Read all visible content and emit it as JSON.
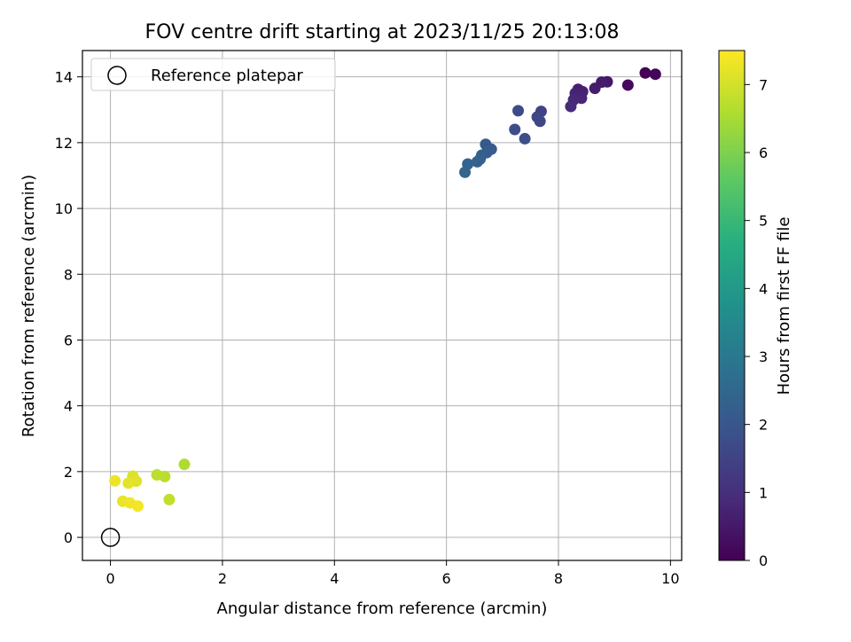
{
  "chart_data": {
    "type": "scatter",
    "title": "FOV centre drift starting at 2023/11/25 20:13:08",
    "xlabel": "Angular distance from reference (arcmin)",
    "ylabel": "Rotation from reference (arcmin)",
    "xlim": [
      -0.5,
      10.2
    ],
    "ylim": [
      -0.7,
      14.8
    ],
    "xticks": [
      0,
      2,
      4,
      6,
      8,
      10
    ],
    "yticks": [
      0,
      2,
      4,
      6,
      8,
      10,
      12,
      14
    ],
    "grid": true,
    "legend": {
      "position": "top-left",
      "label": "Reference platepar"
    },
    "reference_point": {
      "x": 0,
      "y": 0
    },
    "colorbar": {
      "label": "Hours from first FF file",
      "range": [
        0,
        7.5
      ],
      "ticks": [
        0,
        1,
        2,
        3,
        4,
        5,
        6,
        7
      ],
      "colormap": "viridis"
    },
    "points": [
      {
        "x": 9.55,
        "y": 14.12,
        "h": 0.05
      },
      {
        "x": 9.73,
        "y": 14.08,
        "h": 0.1
      },
      {
        "x": 9.24,
        "y": 13.75,
        "h": 0.2
      },
      {
        "x": 8.87,
        "y": 13.85,
        "h": 0.5
      },
      {
        "x": 8.77,
        "y": 13.84,
        "h": 0.55
      },
      {
        "x": 8.65,
        "y": 13.65,
        "h": 0.6
      },
      {
        "x": 8.35,
        "y": 13.62,
        "h": 0.65
      },
      {
        "x": 8.43,
        "y": 13.55,
        "h": 0.7
      },
      {
        "x": 8.3,
        "y": 13.5,
        "h": 0.75
      },
      {
        "x": 8.41,
        "y": 13.35,
        "h": 0.8
      },
      {
        "x": 8.27,
        "y": 13.3,
        "h": 0.85
      },
      {
        "x": 8.22,
        "y": 13.1,
        "h": 0.9
      },
      {
        "x": 7.69,
        "y": 12.95,
        "h": 1.5
      },
      {
        "x": 7.62,
        "y": 12.78,
        "h": 1.55
      },
      {
        "x": 7.67,
        "y": 12.65,
        "h": 1.6
      },
      {
        "x": 7.28,
        "y": 12.97,
        "h": 1.7
      },
      {
        "x": 7.22,
        "y": 12.4,
        "h": 1.75
      },
      {
        "x": 7.4,
        "y": 12.12,
        "h": 1.8
      },
      {
        "x": 6.7,
        "y": 11.95,
        "h": 2.1
      },
      {
        "x": 6.8,
        "y": 11.8,
        "h": 2.15
      },
      {
        "x": 6.72,
        "y": 11.7,
        "h": 2.2
      },
      {
        "x": 6.63,
        "y": 11.62,
        "h": 2.25
      },
      {
        "x": 6.6,
        "y": 11.5,
        "h": 2.3
      },
      {
        "x": 6.55,
        "y": 11.42,
        "h": 2.35
      },
      {
        "x": 6.38,
        "y": 11.35,
        "h": 2.4
      },
      {
        "x": 6.33,
        "y": 11.1,
        "h": 2.45
      },
      {
        "x": 1.32,
        "y": 2.22,
        "h": 6.6
      },
      {
        "x": 0.97,
        "y": 1.85,
        "h": 6.7
      },
      {
        "x": 0.83,
        "y": 1.9,
        "h": 6.75
      },
      {
        "x": 1.05,
        "y": 1.15,
        "h": 6.8
      },
      {
        "x": 0.4,
        "y": 1.86,
        "h": 7.1
      },
      {
        "x": 0.46,
        "y": 1.71,
        "h": 7.15
      },
      {
        "x": 0.32,
        "y": 1.65,
        "h": 7.2
      },
      {
        "x": 0.08,
        "y": 1.72,
        "h": 7.3
      },
      {
        "x": 0.22,
        "y": 1.1,
        "h": 7.25
      },
      {
        "x": 0.35,
        "y": 1.05,
        "h": 7.35
      },
      {
        "x": 0.49,
        "y": 0.95,
        "h": 7.4
      }
    ]
  }
}
